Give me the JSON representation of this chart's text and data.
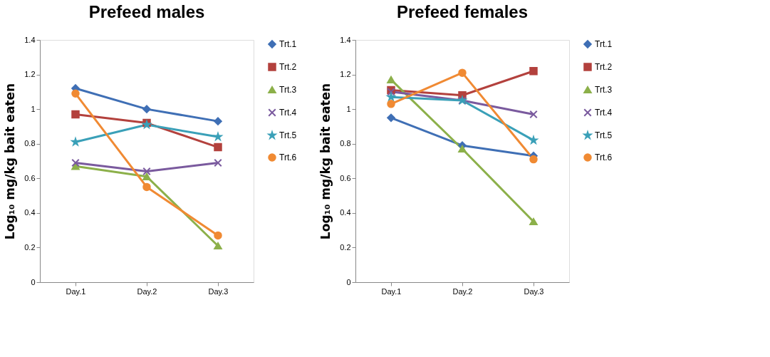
{
  "chart_data": [
    {
      "type": "line",
      "title": "Prefeed males",
      "ylabel": "Log₁₀ mg/kg bait eaten",
      "categories": [
        "Day.1",
        "Day.2",
        "Day.3"
      ],
      "ylim": [
        0,
        1.4
      ],
      "yticks": [
        0,
        0.2,
        0.4,
        0.6,
        0.8,
        1,
        1.2,
        1.4
      ],
      "grid": false,
      "legend": "right",
      "line_style": "solid",
      "series": [
        {
          "name": "Trt.1",
          "color": "#3f6fb5",
          "marker": "diamond",
          "values": [
            1.12,
            1.0,
            0.93
          ]
        },
        {
          "name": "Trt.2",
          "color": "#b3413d",
          "marker": "square",
          "values": [
            0.97,
            0.92,
            0.78
          ]
        },
        {
          "name": "Trt.3",
          "color": "#8cb04a",
          "marker": "triangle",
          "values": [
            0.67,
            0.61,
            0.21
          ]
        },
        {
          "name": "Trt.4",
          "color": "#7a5a9e",
          "marker": "cross",
          "values": [
            0.69,
            0.64,
            0.69
          ]
        },
        {
          "name": "Trt.5",
          "color": "#3aa0b8",
          "marker": "star",
          "values": [
            0.81,
            0.91,
            0.84
          ]
        },
        {
          "name": "Trt.6",
          "color": "#f08a33",
          "marker": "circle",
          "values": [
            1.09,
            0.55,
            0.27
          ]
        }
      ]
    },
    {
      "type": "line",
      "title": "Prefeed females",
      "ylabel": "Log₁₀ mg/kg bait eaten",
      "categories": [
        "Day.1",
        "Day.2",
        "Day.3"
      ],
      "ylim": [
        0,
        1.4
      ],
      "yticks": [
        0,
        0.2,
        0.4,
        0.6,
        0.8,
        1,
        1.2,
        1.4
      ],
      "grid": false,
      "legend": "right",
      "line_style": "solid",
      "series": [
        {
          "name": "Trt.1",
          "color": "#3f6fb5",
          "marker": "diamond",
          "values": [
            0.95,
            0.79,
            0.73
          ]
        },
        {
          "name": "Trt.2",
          "color": "#b3413d",
          "marker": "square",
          "values": [
            1.11,
            1.08,
            1.22
          ]
        },
        {
          "name": "Trt.3",
          "color": "#8cb04a",
          "marker": "triangle",
          "values": [
            1.17,
            0.77,
            0.35
          ]
        },
        {
          "name": "Trt.4",
          "color": "#7a5a9e",
          "marker": "cross",
          "values": [
            1.1,
            1.05,
            0.97
          ]
        },
        {
          "name": "Trt.5",
          "color": "#3aa0b8",
          "marker": "star",
          "values": [
            1.07,
            1.05,
            0.82
          ]
        },
        {
          "name": "Trt.6",
          "color": "#f08a33",
          "marker": "circle",
          "values": [
            1.03,
            1.21,
            0.71
          ]
        }
      ]
    }
  ]
}
